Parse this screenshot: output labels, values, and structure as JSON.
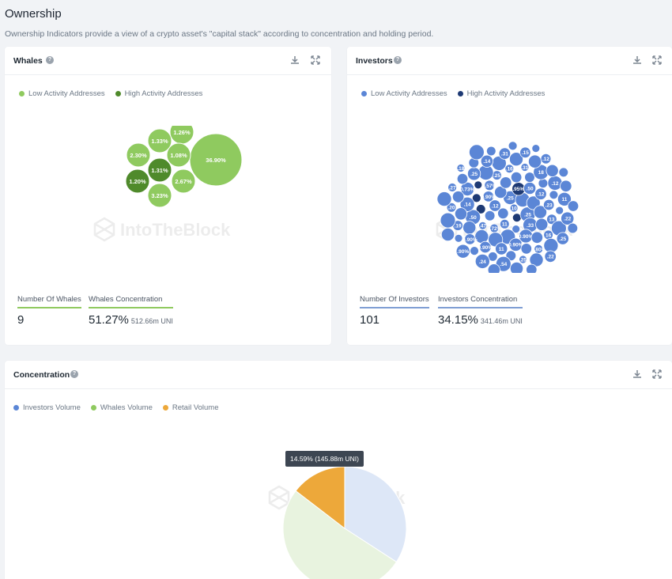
{
  "page": {
    "title": "Ownership",
    "description": "Ownership Indicators provide a view of a crypto asset's \"capital stack\" according to concentration and holding period."
  },
  "colors": {
    "whale_low": "#8fca5f",
    "whale_high": "#4f8a2b",
    "investor_low": "#5b86d6",
    "investor_high": "#1e3a74",
    "pie_investors": "#dde7f7",
    "pie_whales": "#e8f3df",
    "pie_retail": "#eda83a"
  },
  "whales": {
    "title": "Whales",
    "legend": [
      "Low Activity Addresses",
      "High Activity Addresses"
    ],
    "bubbles": [
      {
        "label": "36.90%",
        "value": 36.9,
        "high": false
      },
      {
        "label": "3.23%",
        "value": 3.23,
        "high": false
      },
      {
        "label": "2.67%",
        "value": 2.67,
        "high": false
      },
      {
        "label": "2.30%",
        "value": 2.3,
        "high": false
      },
      {
        "label": "1.33%",
        "value": 1.33,
        "high": false
      },
      {
        "label": "1.31%",
        "value": 1.31,
        "high": true
      },
      {
        "label": "1.26%",
        "value": 1.26,
        "high": false
      },
      {
        "label": "1.20%",
        "value": 1.2,
        "high": true
      },
      {
        "label": "1.08%",
        "value": 1.08,
        "high": false
      }
    ],
    "stats": {
      "count_label": "Number Of Whales",
      "count_value": "9",
      "conc_label": "Whales Concentration",
      "conc_value": "51.27%",
      "conc_sub": "512.66m UNI"
    }
  },
  "investors": {
    "title": "Investors",
    "legend": [
      "Low Activity Addresses",
      "High Activity Addresses"
    ],
    "bubble_labels": [
      "10",
      ".25",
      ".12",
      "11",
      ".25",
      ".95%",
      "0.90%",
      "0.72%",
      ".33",
      ".50",
      "0.57%",
      ".47",
      "0.90%",
      ".12",
      ".25",
      ".50",
      "0.90%",
      ".23",
      ".16",
      ".14",
      "11",
      "13",
      ".31",
      "0.73%",
      "0.90%",
      "16",
      "18",
      ".25",
      "0.90%",
      "0.80%",
      ".12",
      ".14",
      ".19",
      ".25",
      "11",
      ".31",
      ".20",
      ".54",
      ".22",
      ".15",
      ".27",
      ".24",
      ".25",
      ".12",
      ".18",
      ".90%",
      ".22"
    ],
    "stats": {
      "count_label": "Number Of Investors",
      "count_value": "101",
      "conc_label": "Investors Concentration",
      "conc_value": "34.15%",
      "conc_sub": "341.46m UNI"
    }
  },
  "concentration": {
    "title": "Concentration",
    "legend": [
      "Investors Volume",
      "Whales Volume",
      "Retail Volume"
    ],
    "tooltip": "14.59% (145.88m UNI)"
  },
  "chart_data": {
    "type": "pie",
    "series": [
      {
        "name": "Investors Volume",
        "value": 34.15
      },
      {
        "name": "Whales Volume",
        "value": 51.27
      },
      {
        "name": "Retail Volume",
        "value": 14.59
      }
    ]
  },
  "watermark": "IntoTheBlock"
}
